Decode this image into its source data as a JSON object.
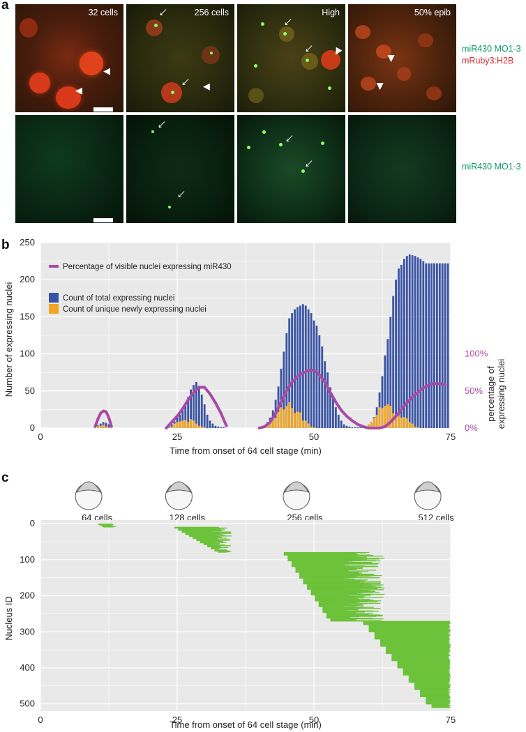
{
  "panel_a": {
    "letter": "a",
    "stages": [
      "32 cells",
      "256 cells",
      "High",
      "50% epib"
    ],
    "row1_labels": [
      "miR430 MO1-3",
      "mRuby3:H2B"
    ],
    "row2_label": "miR430 MO1-3",
    "colors": {
      "green": "#0a9a63",
      "red": "#d8262b"
    }
  },
  "panel_b": {
    "letter": "b"
  },
  "panel_c": {
    "letter": "c"
  },
  "chart_data": [
    {
      "type": "bar",
      "title": "",
      "xlabel": "Time from onset of 64 cell stage (min)",
      "ylabel": "Number of expressing nuclei",
      "ylabel_right": [
        "percentage of",
        "expressing nuclei"
      ],
      "xlim": [
        0,
        75
      ],
      "ylim": [
        0,
        250
      ],
      "xticks": [
        "0",
        "25",
        "50",
        "75"
      ],
      "yticks": [
        "0",
        "50",
        "100",
        "150",
        "200",
        "250"
      ],
      "right_ticks": [
        "0%",
        "50%",
        "100%"
      ],
      "legend": {
        "line_label": "Percentage of visible nuclei expressing miR430",
        "total_label": "Count of total expressing nuclei",
        "unique_label": "Count of unique newly expressing nuclei"
      },
      "colors": {
        "total": "#3a54a5",
        "unique": "#f2a520",
        "line": "#a84aa6",
        "panel_bg": "#e9e9e9"
      },
      "x": [
        10.5,
        11,
        11.5,
        12,
        12.5,
        23.5,
        24,
        24.5,
        25,
        25.5,
        26,
        26.5,
        27,
        27.5,
        28,
        28.5,
        29,
        29.5,
        30,
        30.5,
        31,
        31.5,
        32,
        32.5,
        33,
        33.5,
        40.5,
        41,
        41.5,
        42,
        42.5,
        43,
        43.5,
        44,
        44.5,
        45,
        45.5,
        46,
        46.5,
        47,
        47.5,
        48,
        48.5,
        49,
        49.5,
        50,
        50.5,
        51,
        51.5,
        52,
        52.5,
        53,
        53.5,
        54,
        54.5,
        55,
        55.5,
        56,
        56.5,
        57,
        57.5,
        58,
        58.5,
        59,
        59.5,
        60,
        60.5,
        61,
        61.5,
        62,
        62.5,
        63,
        63.5,
        64,
        64.5,
        65,
        65.5,
        66,
        66.5,
        67,
        67.5,
        68,
        68.5,
        69,
        69.5,
        70,
        70.5,
        71,
        71.5,
        72,
        72.5,
        73,
        73.5,
        74,
        74.5
      ],
      "series": [
        {
          "name": "Count of total expressing nuclei",
          "values": [
            4,
            6,
            8,
            7,
            5,
            2,
            5,
            9,
            14,
            18,
            24,
            33,
            42,
            52,
            58,
            62,
            57,
            45,
            32,
            18,
            10,
            6,
            3,
            2,
            1,
            1,
            2,
            4,
            8,
            14,
            24,
            38,
            56,
            80,
            103,
            128,
            148,
            155,
            160,
            163,
            165,
            167,
            165,
            160,
            155,
            145,
            138,
            125,
            110,
            90,
            75,
            55,
            40,
            28,
            18,
            10,
            5,
            3,
            2,
            1,
            1,
            1,
            1,
            1,
            2,
            4,
            8,
            15,
            28,
            48,
            70,
            98,
            120,
            150,
            178,
            200,
            215,
            220,
            228,
            232,
            234,
            233,
            232,
            230,
            228,
            225,
            222,
            222,
            222,
            222,
            222,
            222,
            222,
            222,
            222
          ]
        },
        {
          "name": "Count of unique newly expressing nuclei",
          "values": [
            3,
            3,
            4,
            2,
            1,
            1,
            2,
            6,
            8,
            9,
            10,
            11,
            8,
            12,
            10,
            6,
            3,
            2,
            1,
            0,
            0,
            0,
            0,
            0,
            0,
            0,
            1,
            3,
            5,
            8,
            12,
            14,
            22,
            28,
            25,
            30,
            35,
            27,
            20,
            22,
            21,
            10,
            10,
            6,
            2,
            1,
            0,
            0,
            0,
            0,
            0,
            0,
            0,
            0,
            0,
            0,
            0,
            0,
            0,
            0,
            0,
            0,
            0,
            0,
            1,
            5,
            8,
            14,
            18,
            28,
            27,
            30,
            32,
            30,
            20,
            16,
            17,
            14,
            15,
            13,
            8,
            6,
            2,
            1,
            0,
            0,
            0,
            0,
            0,
            0,
            0,
            0,
            0,
            0,
            0
          ]
        },
        {
          "name": "Percentage of visible nuclei expressing miR430",
          "type": "line",
          "x": [
            10,
            10.5,
            11,
            11.5,
            12,
            12.5,
            13,
            23,
            24,
            25,
            26,
            27,
            28,
            29,
            30,
            31,
            32,
            33,
            34,
            40,
            41,
            42,
            43,
            44,
            45,
            46,
            47,
            48,
            49,
            50,
            51,
            52,
            53,
            54,
            55,
            56,
            57,
            58,
            59,
            60,
            61,
            62,
            63,
            64,
            65,
            66,
            67,
            68,
            69,
            70,
            71,
            72,
            73,
            74
          ],
          "values": [
            0.02,
            0.12,
            0.2,
            0.23,
            0.22,
            0.14,
            0.02,
            0.0,
            0.08,
            0.16,
            0.26,
            0.38,
            0.48,
            0.55,
            0.55,
            0.46,
            0.34,
            0.2,
            0.03,
            0.0,
            0.02,
            0.08,
            0.2,
            0.35,
            0.5,
            0.62,
            0.7,
            0.74,
            0.78,
            0.78,
            0.72,
            0.62,
            0.48,
            0.35,
            0.24,
            0.16,
            0.1,
            0.05,
            0.02,
            0.0,
            0.0,
            0.0,
            0.02,
            0.08,
            0.16,
            0.25,
            0.34,
            0.42,
            0.48,
            0.54,
            0.58,
            0.6,
            0.6,
            0.58
          ],
          "ylim": [
            0,
            1
          ]
        }
      ]
    },
    {
      "type": "gantt",
      "xlabel": "Time from onset of 64 cell stage (min)",
      "ylabel": "Nucleus ID",
      "xlim": [
        0,
        75
      ],
      "ylim": [
        520,
        -10
      ],
      "xticks": [
        "0",
        "25",
        "50",
        "75"
      ],
      "yticks": [
        "0",
        "100",
        "200",
        "300",
        "400",
        "500"
      ],
      "stage_markers": [
        {
          "label": "64 cells",
          "time": 12
        },
        {
          "label": "128 cells",
          "time": 28.5
        },
        {
          "label": "256 cells",
          "time": 50
        },
        {
          "label": "512 cells",
          "time": 74
        }
      ],
      "bar_color": "#6cc23a",
      "groups": [
        {
          "id_start": 1,
          "id_end": 9,
          "start_min": 10.5,
          "start_max": 11.5,
          "end_min": 12.5,
          "end_max": 14
        },
        {
          "id_start": 10,
          "id_end": 79,
          "start_min": 24.5,
          "start_max": 32.5,
          "end_min": 31,
          "end_max": 35
        },
        {
          "id_start": 80,
          "id_end": 270,
          "start_min": 44.5,
          "start_max": 53,
          "end_min": 55,
          "end_max": 63
        },
        {
          "id_start": 271,
          "id_end": 510,
          "start_min": 59,
          "start_max": 71.5,
          "end_min": 74.5,
          "end_max": 75
        }
      ]
    }
  ]
}
